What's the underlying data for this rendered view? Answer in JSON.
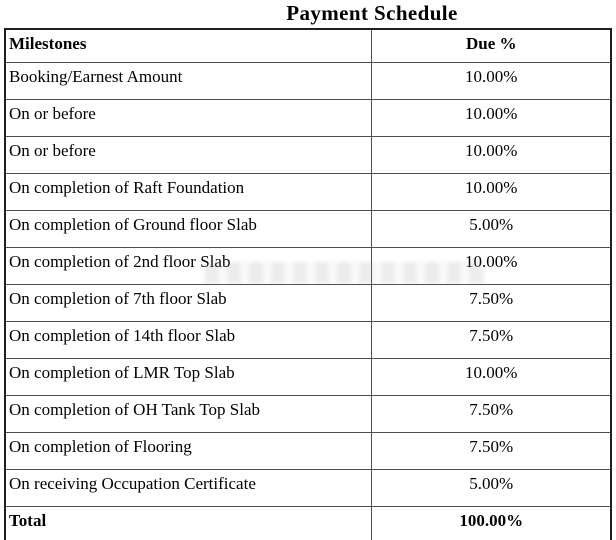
{
  "page": {
    "title": "Payment Schedule"
  },
  "table": {
    "columns": [
      "Milestones",
      "Due %"
    ],
    "rows": [
      {
        "milestone": "Booking/Earnest Amount",
        "due": "10.00%"
      },
      {
        "milestone": "On or before",
        "due": "10.00%"
      },
      {
        "milestone": "On or before",
        "due": "10.00%"
      },
      {
        "milestone": "On completion of Raft Foundation",
        "due": "10.00%"
      },
      {
        "milestone": "On completion of Ground floor Slab",
        "due": "5.00%"
      },
      {
        "milestone": "On completion of 2nd floor Slab",
        "due": "10.00%"
      },
      {
        "milestone": "On completion of 7th floor Slab",
        "due": "7.50%"
      },
      {
        "milestone": "On completion of 14th floor Slab",
        "due": "7.50%"
      },
      {
        "milestone": "On completion of LMR Top Slab",
        "due": "10.00%"
      },
      {
        "milestone": "On completion of OH Tank Top Slab",
        "due": "7.50%"
      },
      {
        "milestone": "On completion of Flooring",
        "due": "7.50%"
      },
      {
        "milestone": "On receiving Occupation Certificate",
        "due": "5.00%"
      }
    ],
    "total": {
      "label": "Total",
      "due": "100.00%"
    }
  },
  "colors": {
    "text": "#000000",
    "border_outer": "#1f1f1f",
    "border_inner": "#4f4f4f",
    "background": "#ffffff"
  }
}
